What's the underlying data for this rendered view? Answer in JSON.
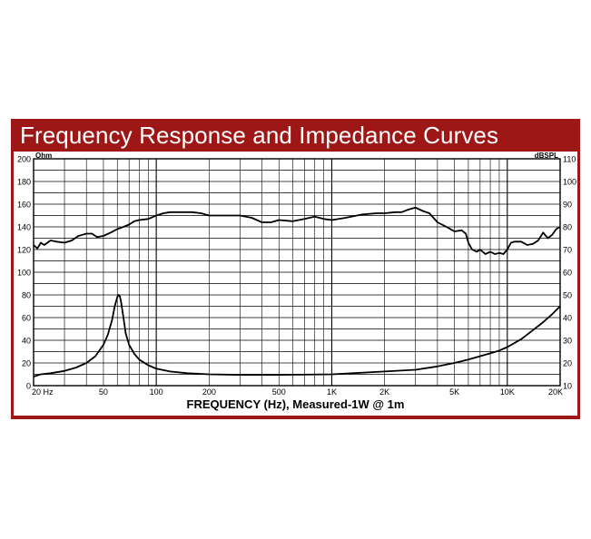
{
  "chart_data": {
    "type": "line",
    "title": "Frequency Response and Impedance Curves",
    "xlabel": "FREQUENCY (Hz), Measured-1W @ 1m",
    "x_scale": "log",
    "xlim": [
      20,
      20000
    ],
    "x_ticks": [
      {
        "value": 20,
        "label": "20 Hz"
      },
      {
        "value": 50,
        "label": "50"
      },
      {
        "value": 100,
        "label": "100"
      },
      {
        "value": 200,
        "label": "200"
      },
      {
        "value": 500,
        "label": "500"
      },
      {
        "value": 1000,
        "label": "1K"
      },
      {
        "value": 2000,
        "label": "2K"
      },
      {
        "value": 5000,
        "label": "5K"
      },
      {
        "value": 10000,
        "label": "10K"
      },
      {
        "value": 20000,
        "label": "20K"
      }
    ],
    "left_axis": {
      "unit": "Ohm",
      "range": [
        0,
        200
      ],
      "ticks": [
        "0",
        "20",
        "40",
        "60",
        "80",
        "100",
        "120",
        "140",
        "160",
        "180",
        "200"
      ]
    },
    "right_axis": {
      "unit": "dBSPL",
      "range": [
        10,
        110
      ],
      "ticks": [
        "10",
        "20",
        "30",
        "40",
        "50",
        "60",
        "70",
        "80",
        "90",
        "100",
        "110"
      ]
    },
    "grid": true,
    "series": [
      {
        "axis": "right",
        "x": [
          20,
          21,
          22,
          23,
          25,
          27,
          30,
          33,
          36,
          40,
          43,
          46,
          50,
          55,
          60,
          65,
          70,
          75,
          80,
          90,
          100,
          110,
          120,
          140,
          160,
          180,
          200,
          250,
          300,
          350,
          400,
          450,
          500,
          600,
          700,
          800,
          900,
          1000,
          1200,
          1500,
          1800,
          2000,
          2300,
          2500,
          2700,
          3000,
          3300,
          3600,
          4000,
          4500,
          5000,
          5500,
          5800,
          6000,
          6300,
          6700,
          7000,
          7500,
          8000,
          8500,
          9000,
          9500,
          10000,
          10500,
          11000,
          12000,
          13000,
          14000,
          15000,
          16000,
          17000,
          18000,
          19000,
          20000
        ],
        "y": [
          72,
          70.5,
          73,
          72,
          74,
          73.5,
          73,
          74,
          76,
          77,
          77,
          75.5,
          76,
          77.5,
          79,
          80,
          81,
          82.5,
          83,
          83.5,
          85,
          86,
          86.5,
          86.5,
          86.5,
          86,
          85,
          85,
          85,
          84,
          82,
          82,
          83,
          82.5,
          83.5,
          84.5,
          83.5,
          83,
          84,
          85.5,
          86,
          86,
          86.5,
          86.5,
          87.5,
          88.5,
          87,
          86,
          82,
          80,
          78,
          78.5,
          77,
          73,
          70,
          69,
          70,
          68,
          69,
          68,
          68.5,
          68,
          70,
          73,
          73.5,
          73.5,
          72,
          72.5,
          74,
          77.5,
          75,
          76.5,
          79,
          80
        ]
      },
      {
        "axis": "left",
        "x": [
          20,
          22,
          25,
          30,
          35,
          40,
          45,
          50,
          53,
          56,
          58,
          60,
          61,
          62,
          63,
          65,
          67,
          70,
          75,
          80,
          90,
          100,
          120,
          150,
          200,
          300,
          500,
          1000,
          2000,
          3000,
          4000,
          5000,
          6000,
          7000,
          8000,
          9000,
          10000,
          12000,
          14000,
          16000,
          18000,
          20000
        ],
        "y": [
          8,
          10,
          11,
          13,
          16,
          20,
          26,
          36,
          45,
          58,
          70,
          78,
          80,
          79,
          74,
          60,
          46,
          36,
          28,
          23,
          18,
          15,
          12.5,
          11,
          10,
          9.5,
          9.5,
          10,
          12.5,
          14,
          17,
          20,
          23,
          26,
          28.5,
          31,
          34,
          41,
          49,
          56,
          63,
          70
        ]
      }
    ]
  }
}
